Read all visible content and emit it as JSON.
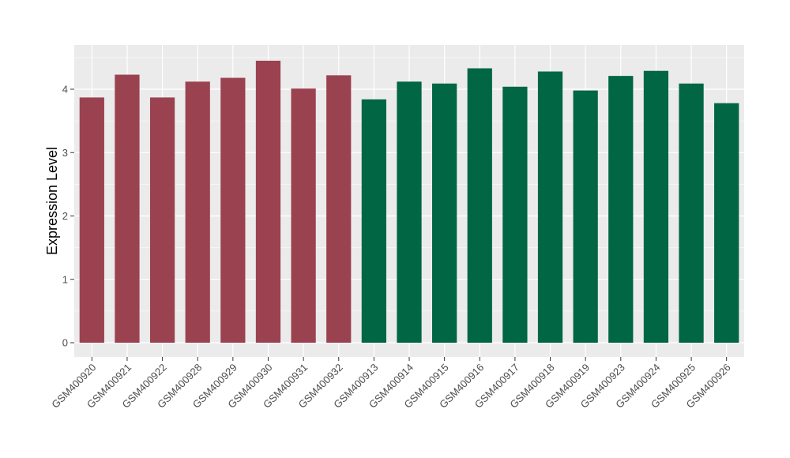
{
  "chart_data": {
    "type": "bar",
    "title": "",
    "xlabel": "",
    "ylabel": "Expression Level",
    "ylim": [
      -0.2,
      4.68
    ],
    "yticks": [
      0,
      1,
      2,
      3,
      4
    ],
    "grid": true,
    "legend": "none",
    "colors": {
      "group_a": "#9b4250",
      "group_b": "#006644",
      "panel": "#ebebeb",
      "grid": "#ffffff"
    },
    "categories": [
      "GSM400920",
      "GSM400921",
      "GSM400922",
      "GSM400928",
      "GSM400929",
      "GSM400930",
      "GSM400931",
      "GSM400932",
      "GSM400913",
      "GSM400914",
      "GSM400915",
      "GSM400916",
      "GSM400917",
      "GSM400918",
      "GSM400919",
      "GSM400923",
      "GSM400924",
      "GSM400925",
      "GSM400926"
    ],
    "values": [
      3.87,
      4.23,
      3.87,
      4.12,
      4.18,
      4.45,
      4.01,
      4.22,
      3.84,
      4.12,
      4.09,
      4.33,
      4.04,
      4.28,
      3.98,
      4.21,
      4.29,
      4.09,
      3.78
    ],
    "groups": [
      "a",
      "a",
      "a",
      "a",
      "a",
      "a",
      "a",
      "a",
      "b",
      "b",
      "b",
      "b",
      "b",
      "b",
      "b",
      "b",
      "b",
      "b",
      "b"
    ]
  }
}
